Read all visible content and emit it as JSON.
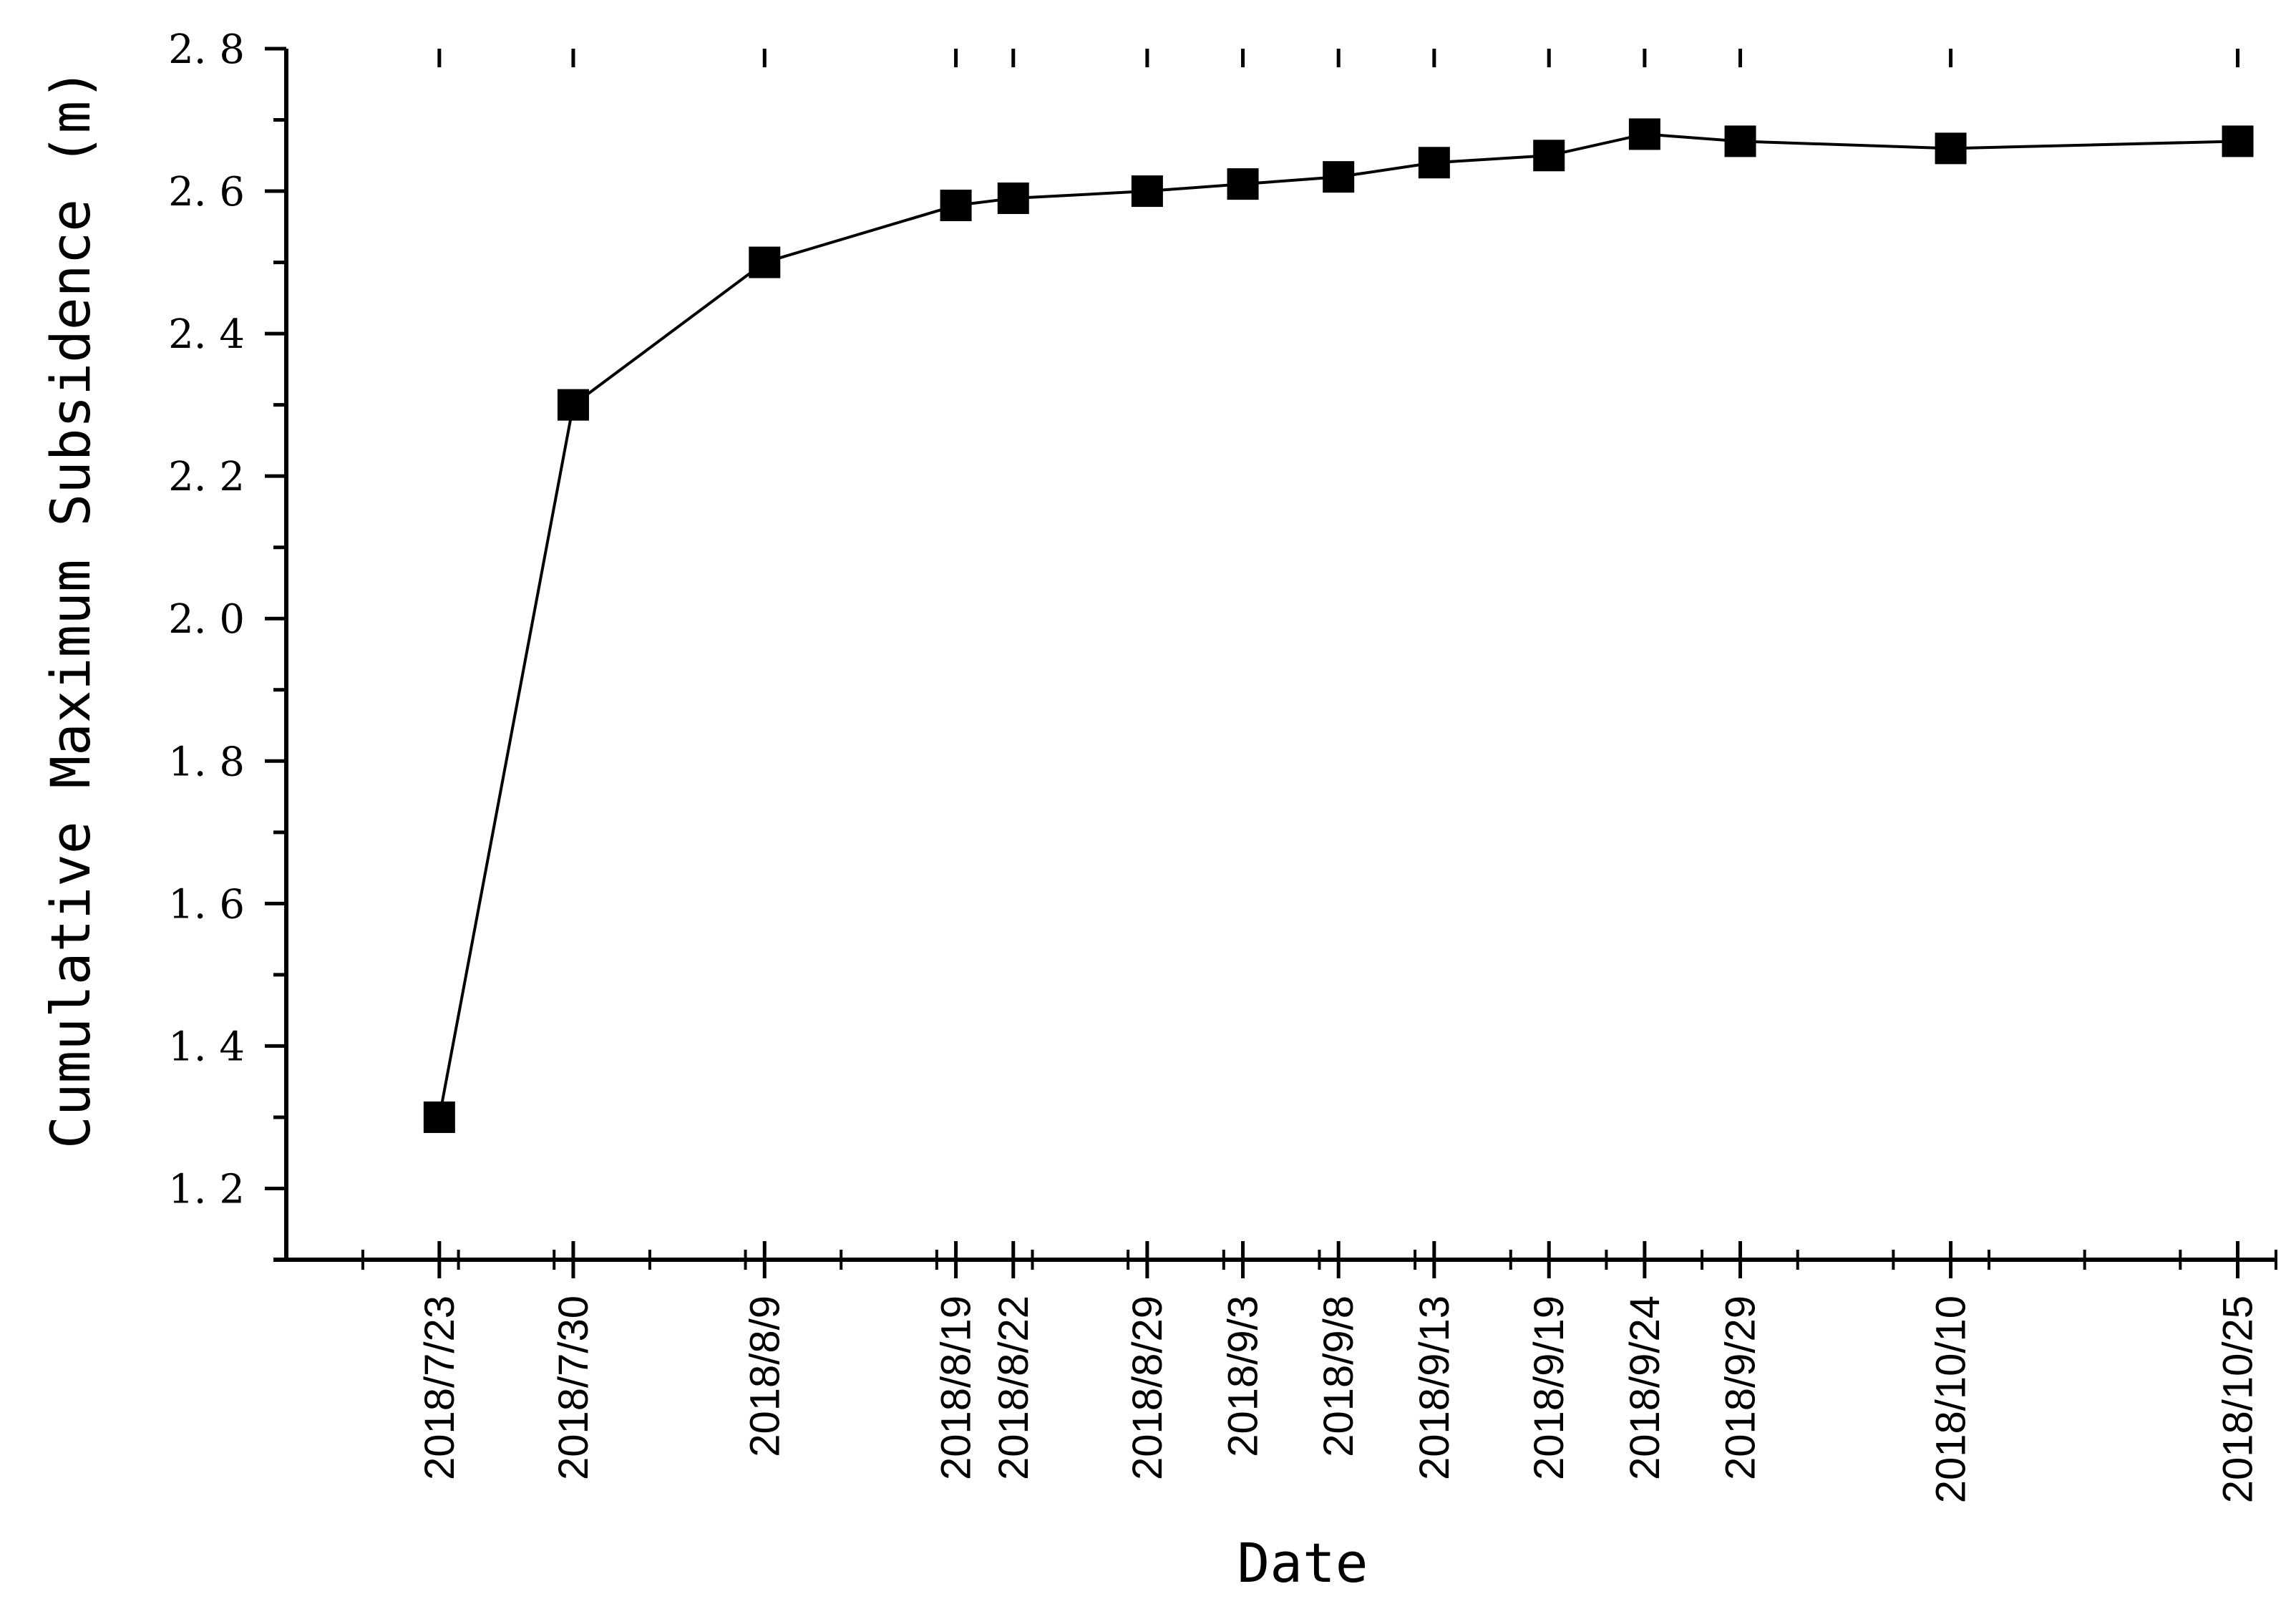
{
  "chart_data": {
    "type": "line",
    "xlabel": "Date",
    "ylabel": "Cumulative Maximum Subsidence (m)",
    "ylim": [
      1.1,
      2.8
    ],
    "yticks": [
      "1.2",
      "1.4",
      "1.6",
      "1.8",
      "2.0",
      "2.2",
      "2.4",
      "2.6",
      "2.8"
    ],
    "xlim": [
      "2018/7/15",
      "2018/10/27"
    ],
    "x": [
      "2018/7/23",
      "2018/7/30",
      "2018/8/9",
      "2018/8/19",
      "2018/8/22",
      "2018/8/29",
      "2018/9/3",
      "2018/9/8",
      "2018/9/13",
      "2018/9/19",
      "2018/9/24",
      "2018/9/29",
      "2018/10/10",
      "2018/10/25"
    ],
    "series": [
      {
        "values": [
          1.3,
          2.3,
          2.5,
          2.58,
          2.59,
          2.6,
          2.61,
          2.62,
          2.64,
          2.65,
          2.68,
          2.67,
          2.66,
          2.67
        ]
      }
    ],
    "marker": "square",
    "line_color": "#000000",
    "grid": false,
    "legend": "none"
  }
}
